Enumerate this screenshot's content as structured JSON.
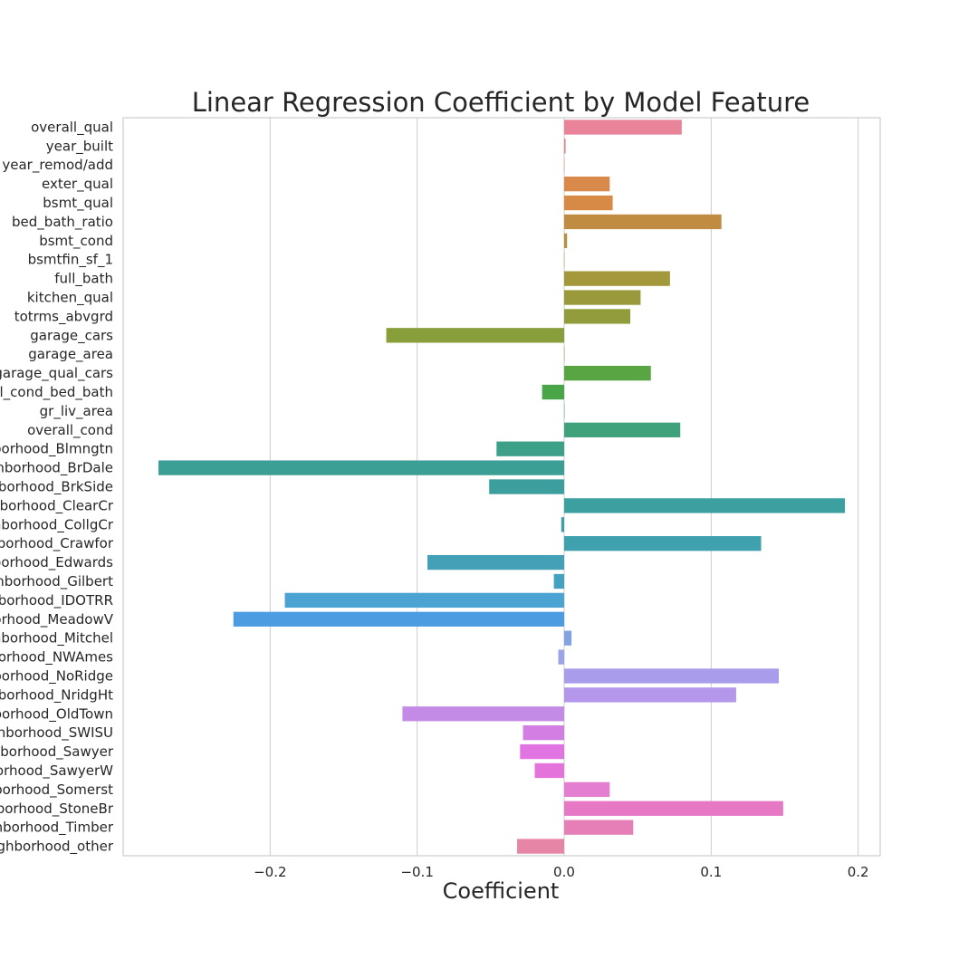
{
  "chart_data": {
    "type": "bar",
    "orientation": "horizontal",
    "title": "Linear Regression Coefficient by Model Feature",
    "xlabel": "Coefficient",
    "ylabel": "",
    "xlim": [
      -0.3,
      0.215
    ],
    "xticks": [
      -0.2,
      -0.1,
      0.0,
      0.1,
      0.2
    ],
    "xtick_labels": [
      "−0.2",
      "−0.1",
      "0.0",
      "0.1",
      "0.2"
    ],
    "grid": "vertical",
    "categories": [
      "overall_qual",
      "year_built",
      "year_remod/add",
      "exter_qual",
      "bsmt_qual",
      "bed_bath_ratio",
      "bsmt_cond",
      "bsmtfin_sf_1",
      "full_bath",
      "kitchen_qual",
      "totrms_abvgrd",
      "garage_cars",
      "garage_area",
      "garage_qual_cars",
      "overall_cond_bed_bath",
      "gr_liv_area",
      "overall_cond",
      "neighborhood_Blmngtn",
      "neighborhood_BrDale",
      "neighborhood_BrkSide",
      "neighborhood_ClearCr",
      "neighborhood_CollgCr",
      "neighborhood_Crawfor",
      "neighborhood_Edwards",
      "neighborhood_Gilbert",
      "neighborhood_IDOTRR",
      "neighborhood_MeadowV",
      "neighborhood_Mitchel",
      "neighborhood_NWAmes",
      "neighborhood_NoRidge",
      "neighborhood_NridgHt",
      "neighborhood_OldTown",
      "neighborhood_SWISU",
      "neighborhood_Sawyer",
      "neighborhood_SawyerW",
      "neighborhood_Somerst",
      "neighborhood_StoneBr",
      "neighborhood_Timber",
      "neighborhood_other"
    ],
    "values": [
      0.08,
      0.001,
      0.0,
      0.031,
      0.033,
      0.107,
      0.002,
      0.0,
      0.072,
      0.052,
      0.045,
      -0.121,
      0.0,
      0.059,
      -0.015,
      0.0,
      0.079,
      -0.046,
      -0.276,
      -0.051,
      0.191,
      -0.002,
      0.134,
      -0.093,
      -0.007,
      -0.19,
      -0.225,
      0.005,
      -0.004,
      0.146,
      0.117,
      -0.11,
      -0.028,
      -0.03,
      -0.02,
      0.031,
      0.149,
      0.047,
      -0.032
    ],
    "colors": [
      "#e8839a",
      "#e6838a",
      "#e5877a",
      "#d9894a",
      "#d68a45",
      "#c08c42",
      "#b7913e",
      "#b0933f",
      "#a3983c",
      "#9a9a3d",
      "#929c3c",
      "#889e3a",
      "#7fa13a",
      "#5aa543",
      "#48a548",
      "#42a56b",
      "#3fa27a",
      "#3da088",
      "#3b9f95",
      "#3c9f9e",
      "#3ca0a0",
      "#3da0a7",
      "#3ea1ad",
      "#43a0b6",
      "#45a1c0",
      "#4aa3d2",
      "#4b9ce0",
      "#83a2e4",
      "#9ba3eb",
      "#a99cea",
      "#b496ea",
      "#c48be6",
      "#d27ee3",
      "#e173e2",
      "#e474dc",
      "#e37ed0",
      "#e678c6",
      "#e67eb8",
      "#e685a6"
    ]
  }
}
